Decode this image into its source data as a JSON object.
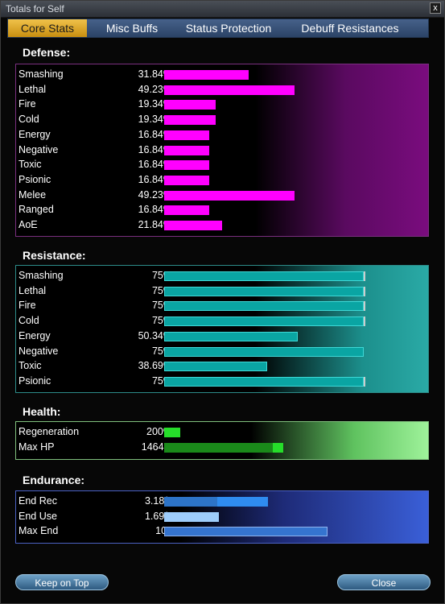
{
  "window": {
    "title": "Totals for Self",
    "close_glyph": "x"
  },
  "tabs": [
    {
      "label": "Core Stats",
      "active": true
    },
    {
      "label": "Misc Buffs",
      "active": false
    },
    {
      "label": "Status Protection",
      "active": false
    },
    {
      "label": "Debuff Resistances",
      "active": false
    }
  ],
  "defense": {
    "title": "Defense:",
    "rows": [
      {
        "label": "Smashing",
        "value": "31.84%",
        "fraction": 0.3184
      },
      {
        "label": "Lethal",
        "value": "49.23%",
        "fraction": 0.4923
      },
      {
        "label": "Fire",
        "value": "19.34%",
        "fraction": 0.1934
      },
      {
        "label": "Cold",
        "value": "19.34%",
        "fraction": 0.1934
      },
      {
        "label": "Energy",
        "value": "16.84%",
        "fraction": 0.1684
      },
      {
        "label": "Negative",
        "value": "16.84%",
        "fraction": 0.1684
      },
      {
        "label": "Toxic",
        "value": "16.84%",
        "fraction": 0.1684
      },
      {
        "label": "Psionic",
        "value": "16.84%",
        "fraction": 0.1684
      },
      {
        "label": "Melee",
        "value": "49.23%",
        "fraction": 0.4923
      },
      {
        "label": "Ranged",
        "value": "16.84%",
        "fraction": 0.1684
      },
      {
        "label": "AoE",
        "value": "21.84%",
        "fraction": 0.2184
      }
    ]
  },
  "resistance": {
    "title": "Resistance:",
    "rows": [
      {
        "label": "Smashing",
        "value": "75%",
        "fraction": 0.75,
        "capped": true
      },
      {
        "label": "Lethal",
        "value": "75%",
        "fraction": 0.75,
        "capped": true
      },
      {
        "label": "Fire",
        "value": "75%",
        "fraction": 0.75,
        "capped": true
      },
      {
        "label": "Cold",
        "value": "75%",
        "fraction": 0.75,
        "capped": true
      },
      {
        "label": "Energy",
        "value": "50.34%",
        "fraction": 0.5034,
        "capped": false
      },
      {
        "label": "Negative",
        "value": "75%",
        "fraction": 0.75,
        "capped": false
      },
      {
        "label": "Toxic",
        "value": "38.69%",
        "fraction": 0.3869,
        "capped": false
      },
      {
        "label": "Psionic",
        "value": "75%",
        "fraction": 0.75,
        "capped": true
      }
    ]
  },
  "health": {
    "title": "Health:",
    "rows": [
      {
        "label": "Regeneration",
        "value": "200%",
        "base_fraction": 0.0,
        "fraction": 0.06
      },
      {
        "label": "Max HP",
        "value": "1464.5",
        "base_fraction": 0.41,
        "fraction": 0.45
      }
    ]
  },
  "endurance": {
    "title": "Endurance:",
    "rows": [
      {
        "label": "End Rec",
        "value": "3.18/s",
        "base_fraction": 0.2,
        "fraction": 0.39,
        "style": "rec"
      },
      {
        "label": "End Use",
        "value": "1.69/s",
        "fraction": 0.205,
        "style": "use"
      },
      {
        "label": "Max End",
        "value": "100",
        "fraction": 0.615,
        "style": "max"
      }
    ]
  },
  "buttons": {
    "keep_on_top": "Keep on Top",
    "close": "Close"
  }
}
